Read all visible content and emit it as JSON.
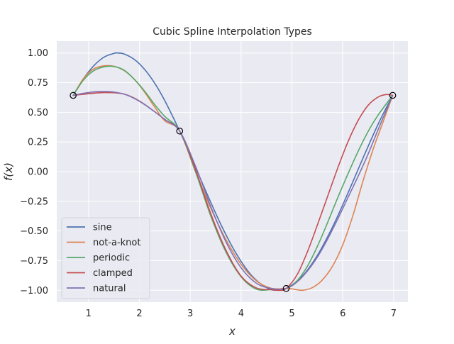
{
  "chart_data": {
    "type": "line",
    "title": "Cubic Spline Interpolation Types",
    "xlabel": "x",
    "ylabel": "f(x)",
    "xlim": [
      0.375,
      7.28
    ],
    "ylim": [
      -1.1,
      1.1
    ],
    "xticks": [
      1,
      2,
      3,
      4,
      5,
      6,
      7
    ],
    "yticks": [
      -1.0,
      -0.75,
      -0.5,
      -0.25,
      0.0,
      0.25,
      0.5,
      0.75,
      1.0
    ],
    "xtick_labels": [
      "1",
      "2",
      "3",
      "4",
      "5",
      "6",
      "7"
    ],
    "ytick_labels": [
      "−1.00",
      "−0.75",
      "−0.50",
      "−0.25",
      "0.00",
      "0.25",
      "0.50",
      "0.75",
      "1.00"
    ],
    "grid": true,
    "legend_position": "lower-left",
    "knots": {
      "x": [
        0.6981,
        2.7925,
        4.8869,
        6.9813
      ],
      "y": [
        0.6428,
        0.342,
        -0.9848,
        0.6428
      ]
    },
    "series": [
      {
        "name": "sine",
        "color": "#4c72b0",
        "x": [
          0.6981,
          0.9,
          1.1,
          1.3,
          1.5,
          1.57,
          1.7,
          1.9,
          2.1,
          2.3,
          2.5,
          2.7925,
          3.0,
          3.3,
          3.6,
          3.9,
          4.2,
          4.5,
          4.712,
          4.9,
          5.2,
          5.5,
          5.8,
          6.1,
          6.4,
          6.7,
          6.9813
        ],
        "y": [
          0.6428,
          0.783,
          0.891,
          0.964,
          0.997,
          1.0,
          0.992,
          0.946,
          0.863,
          0.746,
          0.598,
          0.342,
          0.141,
          -0.158,
          -0.443,
          -0.688,
          -0.872,
          -0.978,
          -1.0,
          -0.982,
          -0.883,
          -0.706,
          -0.465,
          -0.182,
          0.117,
          0.405,
          0.6428
        ]
      },
      {
        "name": "not-a-knot",
        "color": "#dd8452",
        "x": [
          0.6981,
          0.9,
          1.1,
          1.3,
          1.5,
          1.7,
          1.9,
          2.1,
          2.3,
          2.5,
          2.7925,
          3.1,
          3.4,
          3.7,
          4.0,
          4.3,
          4.6,
          4.8869,
          5.0,
          5.2,
          5.4,
          5.6,
          5.8,
          6.0,
          6.2,
          6.4,
          6.6,
          6.8,
          6.9813
        ],
        "y": [
          0.6428,
          0.784,
          0.866,
          0.892,
          0.888,
          0.852,
          0.778,
          0.672,
          0.545,
          0.428,
          0.342,
          0.003,
          -0.304,
          -0.571,
          -0.781,
          -0.92,
          -0.984,
          -0.9848,
          -0.988,
          -1.0,
          -0.978,
          -0.912,
          -0.795,
          -0.616,
          -0.368,
          -0.075,
          0.193,
          0.429,
          0.6428
        ]
      },
      {
        "name": "periodic",
        "color": "#55a868",
        "x": [
          0.6981,
          0.9,
          1.1,
          1.3,
          1.5,
          1.7,
          1.9,
          2.1,
          2.3,
          2.5,
          2.7925,
          3.1,
          3.4,
          3.7,
          4.0,
          4.3,
          4.6,
          4.8869,
          5.1,
          5.3,
          5.5,
          5.7,
          5.9,
          6.1,
          6.3,
          6.5,
          6.7,
          6.9813
        ],
        "y": [
          0.6428,
          0.772,
          0.85,
          0.883,
          0.886,
          0.855,
          0.778,
          0.68,
          0.566,
          0.465,
          0.342,
          0.004,
          -0.37,
          -0.676,
          -0.886,
          -0.99,
          -0.994,
          -0.9848,
          -0.92,
          -0.8,
          -0.63,
          -0.43,
          -0.22,
          -0.02,
          0.17,
          0.34,
          0.48,
          0.6428
        ]
      },
      {
        "name": "clamped",
        "color": "#c44e52",
        "x": [
          0.6981,
          0.9,
          1.1,
          1.3,
          1.5,
          1.7,
          1.9,
          2.1,
          2.3,
          2.5,
          2.7925,
          3.1,
          3.4,
          3.7,
          4.0,
          4.3,
          4.6,
          4.75,
          4.8869,
          5.1,
          5.3,
          5.5,
          5.7,
          5.9,
          6.1,
          6.3,
          6.5,
          6.7,
          6.85,
          6.9813
        ],
        "y": [
          0.6428,
          0.652,
          0.661,
          0.666,
          0.665,
          0.654,
          0.62,
          0.568,
          0.505,
          0.44,
          0.342,
          0.02,
          -0.35,
          -0.66,
          -0.88,
          -0.98,
          -0.995,
          -1.0,
          -0.9848,
          -0.87,
          -0.68,
          -0.45,
          -0.21,
          0.03,
          0.25,
          0.43,
          0.56,
          0.63,
          0.65,
          0.6428
        ]
      },
      {
        "name": "natural",
        "color": "#8172b3",
        "x": [
          0.6981,
          0.9,
          1.1,
          1.3,
          1.5,
          1.7,
          1.9,
          2.1,
          2.3,
          2.5,
          2.7925,
          3.1,
          3.4,
          3.7,
          4.0,
          4.3,
          4.6,
          4.8869,
          5.1,
          5.3,
          5.5,
          5.7,
          5.9,
          6.1,
          6.3,
          6.5,
          6.7,
          6.9813
        ],
        "y": [
          0.6428,
          0.66,
          0.672,
          0.676,
          0.671,
          0.653,
          0.617,
          0.566,
          0.505,
          0.44,
          0.342,
          0.05,
          -0.29,
          -0.59,
          -0.81,
          -0.94,
          -0.985,
          -0.9848,
          -0.93,
          -0.84,
          -0.72,
          -0.57,
          -0.4,
          -0.22,
          -0.04,
          0.15,
          0.36,
          0.6428
        ]
      }
    ]
  }
}
